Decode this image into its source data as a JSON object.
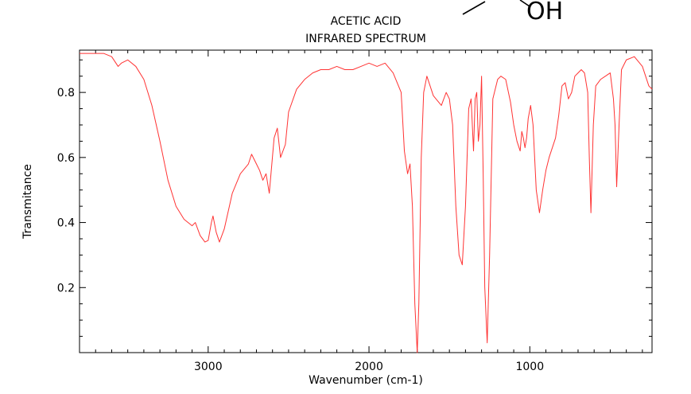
{
  "chart_data": {
    "type": "line",
    "title": "ACETIC ACID",
    "subtitle": "INFRARED SPECTRUM",
    "xlabel": "Wavenumber (cm-1)",
    "ylabel": "Transmitance",
    "xlim": [
      3800,
      240
    ],
    "ylim": [
      0,
      0.93
    ],
    "x_ticks": [
      {
        "value": 3000,
        "label": "3000"
      },
      {
        "value": 2000,
        "label": "2000"
      },
      {
        "value": 1000,
        "label": "1000"
      }
    ],
    "y_ticks": [
      {
        "value": 0.2,
        "label": "0.2"
      },
      {
        "value": 0.4,
        "label": "0.4"
      },
      {
        "value": 0.6,
        "label": "0.6"
      },
      {
        "value": 0.8,
        "label": "0.8"
      }
    ],
    "grid": false,
    "line_color": "#ff3333",
    "series": [
      {
        "x": [
          3800,
          3750,
          3700,
          3650,
          3600,
          3560,
          3540,
          3500,
          3450,
          3400,
          3350,
          3300,
          3250,
          3200,
          3150,
          3100,
          3080,
          3050,
          3020,
          3000,
          2980,
          2970,
          2950,
          2930,
          2900,
          2850,
          2800,
          2750,
          2730,
          2700,
          2680,
          2660,
          2640,
          2620,
          2590,
          2570,
          2550,
          2520,
          2500,
          2450,
          2400,
          2350,
          2300,
          2250,
          2200,
          2150,
          2100,
          2050,
          2000,
          1950,
          1900,
          1850,
          1800,
          1780,
          1760,
          1745,
          1730,
          1715,
          1700,
          1690,
          1675,
          1660,
          1640,
          1600,
          1550,
          1520,
          1500,
          1480,
          1460,
          1440,
          1420,
          1400,
          1380,
          1365,
          1350,
          1340,
          1330,
          1320,
          1310,
          1300,
          1290,
          1280,
          1265,
          1250,
          1230,
          1200,
          1180,
          1150,
          1120,
          1100,
          1080,
          1060,
          1050,
          1040,
          1030,
          1020,
          1010,
          995,
          980,
          960,
          940,
          920,
          900,
          880,
          860,
          840,
          820,
          800,
          780,
          760,
          740,
          720,
          700,
          680,
          660,
          640,
          630,
          620,
          605,
          590,
          560,
          530,
          500,
          480,
          470,
          460,
          445,
          430,
          400,
          350,
          300,
          260,
          240
        ],
        "y": [
          0.92,
          0.92,
          0.92,
          0.92,
          0.91,
          0.88,
          0.89,
          0.9,
          0.88,
          0.84,
          0.76,
          0.65,
          0.53,
          0.45,
          0.41,
          0.39,
          0.4,
          0.36,
          0.34,
          0.345,
          0.4,
          0.42,
          0.37,
          0.34,
          0.38,
          0.49,
          0.55,
          0.58,
          0.61,
          0.58,
          0.56,
          0.53,
          0.55,
          0.49,
          0.66,
          0.69,
          0.6,
          0.64,
          0.74,
          0.81,
          0.84,
          0.86,
          0.87,
          0.87,
          0.88,
          0.87,
          0.87,
          0.88,
          0.89,
          0.88,
          0.89,
          0.86,
          0.8,
          0.62,
          0.55,
          0.58,
          0.45,
          0.15,
          0.0,
          0.15,
          0.6,
          0.8,
          0.85,
          0.79,
          0.76,
          0.8,
          0.78,
          0.7,
          0.45,
          0.3,
          0.27,
          0.45,
          0.75,
          0.78,
          0.62,
          0.78,
          0.8,
          0.65,
          0.7,
          0.85,
          0.55,
          0.2,
          0.03,
          0.3,
          0.78,
          0.84,
          0.85,
          0.84,
          0.77,
          0.7,
          0.65,
          0.62,
          0.68,
          0.66,
          0.63,
          0.66,
          0.72,
          0.76,
          0.7,
          0.5,
          0.43,
          0.5,
          0.56,
          0.6,
          0.63,
          0.66,
          0.73,
          0.82,
          0.83,
          0.78,
          0.8,
          0.85,
          0.86,
          0.87,
          0.86,
          0.8,
          0.6,
          0.43,
          0.7,
          0.82,
          0.84,
          0.85,
          0.86,
          0.78,
          0.7,
          0.51,
          0.7,
          0.87,
          0.9,
          0.91,
          0.88,
          0.82,
          0.81
        ]
      }
    ]
  },
  "structure_label": "OH"
}
